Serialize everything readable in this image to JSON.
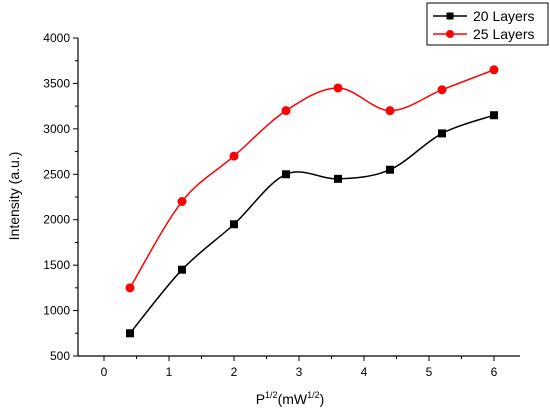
{
  "chart_data": {
    "type": "line",
    "title": "",
    "xlabel_main": "P",
    "xlabel_sup": "1/2",
    "xlabel_unit_open": "(mW",
    "xlabel_unit_sup": "1/2",
    "xlabel_unit_close": ")",
    "ylabel": "Intensity (a.u.)",
    "xlim": [
      -0.4,
      6.4
    ],
    "ylim": [
      500,
      4000
    ],
    "xticks": [
      0,
      1,
      2,
      3,
      4,
      5,
      6
    ],
    "yticks": [
      500,
      1000,
      1500,
      2000,
      2500,
      3000,
      3500,
      4000
    ],
    "grid": false,
    "legend_position": "top-right",
    "x": [
      0.4,
      1.2,
      2.0,
      2.8,
      3.6,
      4.4,
      5.2,
      6.0
    ],
    "series": [
      {
        "name": "20 Layers",
        "color": "#000000",
        "marker": "square",
        "values": [
          750,
          1450,
          1950,
          2500,
          2450,
          2550,
          2950,
          3150
        ]
      },
      {
        "name": "25 Layers",
        "color": "#ff0000",
        "marker": "circle",
        "values": [
          1250,
          2200,
          2700,
          3200,
          3450,
          3200,
          3430,
          3650
        ]
      }
    ]
  }
}
